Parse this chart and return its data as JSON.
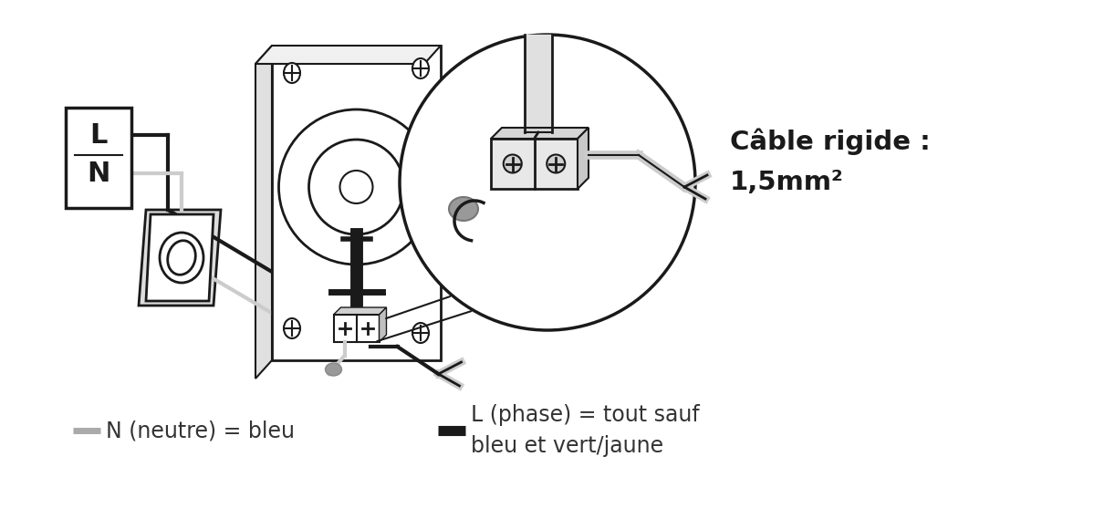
{
  "bg_color": "#ffffff",
  "dark_color": "#1a1a1a",
  "gray_color": "#aaaaaa",
  "lgray_color": "#cccccc",
  "cable_rigide_label": "Câble rigide :",
  "cable_rigide_value": "1,5mm²",
  "legend1_line_color": "#aaaaaa",
  "legend1_text": "N (neutre) = bleu",
  "legend2_line_color": "#1a1a1a",
  "legend2_text": "L (phase) = tout sauf\nbleu et vert/jaune",
  "figsize": [
    12.22,
    5.69
  ],
  "dpi": 100
}
